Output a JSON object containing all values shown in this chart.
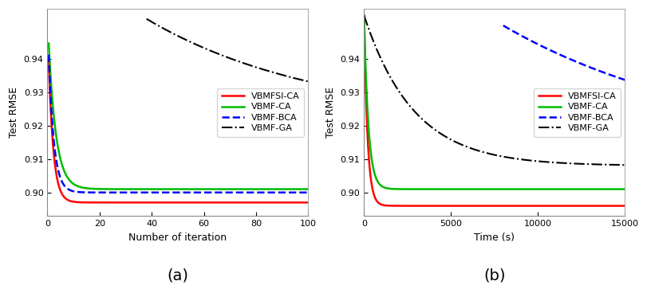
{
  "title_a": "(a)",
  "title_b": "(b)",
  "xlabel_a": "Number of iteration",
  "xlabel_b": "Time (s)",
  "ylabel": "Test RMSE",
  "xlim_a": [
    0,
    100
  ],
  "xlim_b": [
    0,
    15000
  ],
  "ylim_a": [
    0.893,
    0.955
  ],
  "ylim_b": [
    0.893,
    0.955
  ],
  "xticks_a": [
    0,
    20,
    40,
    60,
    80,
    100
  ],
  "xticks_b": [
    0,
    5000,
    10000,
    15000
  ],
  "yticks": [
    0.9,
    0.91,
    0.92,
    0.93,
    0.94
  ],
  "legend_labels_a": [
    "VBMFSI-CA",
    "VBMF-CA",
    "VBMF-BCA",
    "VBMF-GA"
  ],
  "legend_labels_b": [
    "VBMFSI-CA",
    "VBMF-CA",
    "VBMF-BCA",
    "VBMF-GA"
  ],
  "colors": {
    "VBMFSI-CA": "#ff0000",
    "VBMF-CA": "#00bb00",
    "VBMF-BCA": "#0000ff",
    "VBMF-GA": "#000000"
  },
  "linestyles": {
    "VBMFSI-CA": "-",
    "VBMF-CA": "-",
    "VBMF-BCA": "--",
    "VBMF-GA": "-."
  },
  "linewidths": {
    "VBMFSI-CA": 1.8,
    "VBMF-CA": 1.8,
    "VBMF-BCA": 1.8,
    "VBMF-GA": 1.5
  }
}
